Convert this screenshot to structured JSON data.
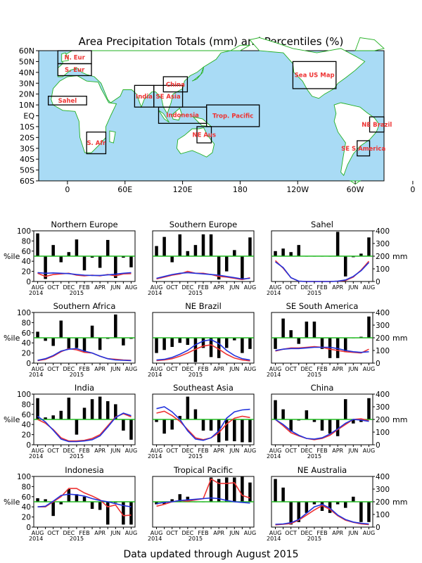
{
  "title": "Area Precipitation Totals (mm) and Percentiles (%)",
  "footer": "Data updated through August 2015",
  "map": {
    "lat_labels": [
      "60N",
      "50N",
      "40N",
      "30N",
      "20N",
      "10N",
      "EQ",
      "10S",
      "20S",
      "30S",
      "40S",
      "50S",
      "60S"
    ],
    "lon_labels": [
      "0",
      "60E",
      "120E",
      "180",
      "120W",
      "60W",
      "0"
    ],
    "regions": [
      {
        "label": "N. Eur",
        "lon": [
          -10,
          25
        ],
        "lat": [
          48,
          60
        ]
      },
      {
        "label": "S. Eur",
        "lon": [
          -10,
          25
        ],
        "lat": [
          37,
          48
        ]
      },
      {
        "label": "Sahel",
        "lon": [
          -20,
          20
        ],
        "lat": [
          10,
          18
        ]
      },
      {
        "label": "S. Afr",
        "lon": [
          20,
          40
        ],
        "lat": [
          -35,
          -15
        ]
      },
      {
        "label": "India",
        "lon": [
          70,
          90
        ],
        "lat": [
          8,
          28
        ]
      },
      {
        "label": "SE Asia",
        "lon": [
          90,
          120
        ],
        "lat": [
          8,
          28
        ]
      },
      {
        "label": "China",
        "lon": [
          100,
          125
        ],
        "lat": [
          22,
          36
        ]
      },
      {
        "label": "Indonesia",
        "lon": [
          95,
          145
        ],
        "lat": [
          -7,
          8
        ]
      },
      {
        "label": "Trop. Pacific",
        "lon": [
          145,
          200
        ],
        "lat": [
          -10,
          10
        ]
      },
      {
        "label": "NE Aus",
        "lon": [
          135,
          150
        ],
        "lat": [
          -25,
          -10
        ]
      },
      {
        "label": "Sea US Map",
        "lon": [
          235,
          280
        ],
        "lat": [
          25,
          50
        ]
      },
      {
        "label": "NE Brazil",
        "lon": [
          315,
          330
        ],
        "lat": [
          -15,
          -1
        ]
      },
      {
        "label": "SE S America",
        "lon": [
          302,
          315
        ],
        "lat": [
          -37,
          -23
        ]
      }
    ]
  },
  "panel_axis": {
    "left_ticks": [
      "0",
      "20",
      "40",
      "60",
      "80",
      "100"
    ],
    "right_ticks": [
      "0",
      "100",
      "200",
      "300",
      "400"
    ],
    "left_unit": "%ile",
    "right_unit": "mm",
    "months": [
      "AUG",
      "OCT",
      "DEC",
      "FEB",
      "APR",
      "JUN",
      "AUG"
    ],
    "year_start": "2014",
    "year_mid": "2015"
  },
  "colors": {
    "ocean": "#a9dbf5",
    "land": "#ffffff",
    "coast": "#22b022",
    "region_label": "#ee3333",
    "bars": "#000000",
    "percentile_line": "#22bb22",
    "observed": "#ee3333",
    "climatology": "#2233dd"
  },
  "chart_data": [
    {
      "type": "bar",
      "title": "Northern Europe",
      "x": [
        "AUG 2014",
        "SEP",
        "OCT",
        "NOV",
        "DEC",
        "JAN 2015",
        "FEB",
        "MAR",
        "APR",
        "MAY",
        "JUN",
        "JUL",
        "AUG"
      ],
      "percentiles": [
        95,
        5,
        72,
        38,
        58,
        83,
        22,
        47,
        27,
        82,
        7,
        47,
        28
      ],
      "series": [
        {
          "name": "observed",
          "values_mm": [
            65,
            40,
            55,
            60,
            65,
            50,
            45,
            50,
            45,
            55,
            45,
            60,
            62
          ]
        },
        {
          "name": "climatology",
          "values_mm": [
            70,
            65,
            68,
            65,
            62,
            55,
            50,
            48,
            48,
            52,
            58,
            65,
            70
          ]
        }
      ],
      "ylim": [
        0,
        100
      ],
      "y2lim": [
        0,
        400
      ]
    },
    {
      "type": "bar",
      "title": "Southern Europe",
      "x": [
        "AUG 2014",
        "SEP",
        "OCT",
        "NOV",
        "DEC",
        "JAN 2015",
        "FEB",
        "MAR",
        "APR",
        "MAY",
        "JUN",
        "JUL",
        "AUG"
      ],
      "percentiles": [
        70,
        88,
        38,
        93,
        60,
        72,
        93,
        93,
        4,
        20,
        62,
        4,
        87
      ],
      "series": [
        {
          "name": "observed",
          "values_mm": [
            20,
            35,
            50,
            60,
            80,
            65,
            65,
            55,
            40,
            35,
            25,
            15,
            30
          ]
        },
        {
          "name": "climatology",
          "values_mm": [
            25,
            40,
            55,
            65,
            70,
            65,
            60,
            55,
            50,
            40,
            30,
            20,
            25
          ]
        }
      ],
      "ylim": [
        0,
        100
      ],
      "y2lim": [
        0,
        400
      ]
    },
    {
      "type": "bar",
      "title": "Sahel",
      "x": [
        "AUG 2014",
        "SEP",
        "OCT",
        "NOV",
        "DEC",
        "JAN 2015",
        "FEB",
        "MAR",
        "APR",
        "MAY",
        "JUN",
        "JUL",
        "AUG"
      ],
      "percentiles": [
        60,
        65,
        58,
        72,
        50,
        50,
        50,
        50,
        98,
        10,
        48,
        55,
        87
      ],
      "series": [
        {
          "name": "observed",
          "values_mm": [
            165,
            105,
            30,
            2,
            0,
            0,
            0,
            0,
            2,
            8,
            35,
            90,
            160
          ]
        },
        {
          "name": "climatology",
          "values_mm": [
            155,
            110,
            30,
            3,
            0,
            0,
            0,
            0,
            3,
            12,
            40,
            85,
            150
          ]
        }
      ],
      "ylim": [
        0,
        100
      ],
      "y2lim": [
        0,
        400
      ]
    },
    {
      "type": "bar",
      "title": "Southern Africa",
      "x": [
        "AUG 2014",
        "SEP",
        "OCT",
        "NOV",
        "DEC",
        "JAN 2015",
        "FEB",
        "MAR",
        "APR",
        "MAY",
        "JUN",
        "JUL",
        "AUG"
      ],
      "percentiles": [
        62,
        44,
        34,
        84,
        28,
        30,
        22,
        74,
        26,
        48,
        96,
        35,
        48
      ],
      "series": [
        {
          "name": "observed",
          "values_mm": [
            20,
            30,
            55,
            90,
            115,
            105,
            85,
            80,
            55,
            35,
            30,
            25,
            22
          ]
        },
        {
          "name": "climatology",
          "values_mm": [
            22,
            35,
            60,
            95,
            110,
            115,
            95,
            80,
            55,
            35,
            25,
            22,
            20
          ]
        }
      ],
      "ylim": [
        0,
        100
      ],
      "y2lim": [
        0,
        400
      ]
    },
    {
      "type": "bar",
      "title": "NE Brazil",
      "x": [
        "AUG 2014",
        "SEP",
        "OCT",
        "NOV",
        "DEC",
        "JAN 2015",
        "FEB",
        "MAR",
        "APR",
        "MAY",
        "JUN",
        "JUL",
        "AUG"
      ],
      "percentiles": [
        20,
        26,
        32,
        40,
        36,
        2,
        30,
        12,
        10,
        30,
        45,
        20,
        28
      ],
      "series": [
        {
          "name": "observed",
          "values_mm": [
            20,
            25,
            35,
            55,
            80,
            110,
            135,
            145,
            110,
            70,
            40,
            25,
            18
          ]
        },
        {
          "name": "climatology",
          "values_mm": [
            25,
            30,
            45,
            70,
            100,
            145,
            175,
            185,
            155,
            100,
            60,
            35,
            25
          ]
        }
      ],
      "ylim": [
        0,
        100
      ],
      "y2lim": [
        0,
        400
      ]
    },
    {
      "type": "bar",
      "title": "SE South America",
      "x": [
        "AUG 2014",
        "SEP",
        "OCT",
        "NOV",
        "DEC",
        "JAN 2015",
        "FEB",
        "MAR",
        "APR",
        "MAY",
        "JUN",
        "JUL",
        "AUG"
      ],
      "percentiles": [
        28,
        88,
        65,
        38,
        82,
        82,
        28,
        10,
        10,
        22,
        50,
        52,
        92
      ],
      "series": [
        {
          "name": "observed",
          "values_mm": [
            95,
            110,
            120,
            120,
            125,
            130,
            125,
            110,
            100,
            90,
            85,
            80,
            110
          ]
        },
        {
          "name": "climatology",
          "values_mm": [
            100,
            110,
            115,
            115,
            120,
            125,
            125,
            125,
            115,
            100,
            90,
            85,
            90
          ]
        }
      ],
      "ylim": [
        0,
        100
      ],
      "y2lim": [
        0,
        400
      ]
    },
    {
      "type": "bar",
      "title": "India",
      "x": [
        "AUG 2014",
        "SEP",
        "OCT",
        "NOV",
        "DEC",
        "JAN 2015",
        "FEB",
        "MAR",
        "APR",
        "MAY",
        "JUN",
        "JUL",
        "AUG"
      ],
      "percentiles": [
        92,
        54,
        58,
        67,
        93,
        20,
        73,
        90,
        95,
        86,
        80,
        28,
        10
      ],
      "series": [
        {
          "name": "observed",
          "values_mm": [
            200,
            170,
            120,
            55,
            30,
            30,
            35,
            50,
            80,
            150,
            220,
            245,
            220
          ]
        },
        {
          "name": "climatology",
          "values_mm": [
            225,
            180,
            115,
            45,
            25,
            25,
            30,
            40,
            70,
            140,
            215,
            250,
            230
          ]
        }
      ],
      "ylim": [
        0,
        100
      ],
      "y2lim": [
        0,
        400
      ]
    },
    {
      "type": "bar",
      "title": "Southeast Asia",
      "x": [
        "AUG 2014",
        "SEP",
        "OCT",
        "NOV",
        "DEC",
        "JAN 2015",
        "FEB",
        "MAR",
        "APR",
        "MAY",
        "JUN",
        "JUL",
        "AUG"
      ],
      "percentiles": [
        45,
        22,
        30,
        57,
        95,
        70,
        28,
        28,
        5,
        8,
        7,
        5,
        5
      ],
      "series": [
        {
          "name": "observed",
          "values_mm": [
            250,
            265,
            230,
            185,
            120,
            55,
            40,
            55,
            95,
            165,
            210,
            225,
            215
          ]
        },
        {
          "name": "climatology",
          "values_mm": [
            285,
            300,
            260,
            200,
            110,
            45,
            35,
            55,
            110,
            210,
            260,
            275,
            280
          ]
        }
      ],
      "ylim": [
        0,
        100
      ],
      "y2lim": [
        0,
        400
      ]
    },
    {
      "type": "bar",
      "title": "China",
      "x": [
        "AUG 2014",
        "SEP",
        "OCT",
        "NOV",
        "DEC",
        "JAN 2015",
        "FEB",
        "MAR",
        "APR",
        "MAY",
        "JUN",
        "JUL",
        "AUG"
      ],
      "percentiles": [
        88,
        70,
        26,
        48,
        68,
        45,
        28,
        22,
        17,
        90,
        42,
        45,
        92
      ],
      "series": [
        {
          "name": "observed",
          "values_mm": [
            200,
            150,
            95,
            70,
            50,
            40,
            50,
            75,
            120,
            160,
            200,
            205,
            190
          ]
        },
        {
          "name": "climatology",
          "values_mm": [
            200,
            160,
            110,
            75,
            50,
            45,
            55,
            85,
            125,
            170,
            200,
            195,
            185
          ]
        }
      ],
      "ylim": [
        0,
        100
      ],
      "y2lim": [
        0,
        400
      ]
    },
    {
      "type": "bar",
      "title": "Indonesia",
      "x": [
        "AUG 2014",
        "SEP",
        "OCT",
        "NOV",
        "DEC",
        "JAN 2015",
        "FEB",
        "MAR",
        "APR",
        "MAY",
        "JUN",
        "JUL",
        "AUG"
      ],
      "percentiles": [
        57,
        55,
        22,
        45,
        75,
        65,
        60,
        36,
        34,
        5,
        48,
        5,
        5
      ],
      "series": [
        {
          "name": "observed",
          "values_mm": [
            160,
            160,
            200,
            240,
            305,
            305,
            270,
            245,
            215,
            160,
            175,
            90,
            95
          ]
        },
        {
          "name": "climatology",
          "values_mm": [
            160,
            165,
            205,
            250,
            260,
            255,
            245,
            225,
            210,
            200,
            185,
            170,
            160
          ]
        }
      ],
      "ylim": [
        0,
        100
      ],
      "y2lim": [
        0,
        400
      ]
    },
    {
      "type": "bar",
      "title": "Tropical Pacific",
      "x": [
        "AUG 2014",
        "SEP",
        "OCT",
        "NOV",
        "DEC",
        "JAN 2015",
        "FEB",
        "MAR",
        "APR",
        "MAY",
        "JUN",
        "JUL",
        "AUG"
      ],
      "percentiles": [
        45,
        45,
        55,
        65,
        60,
        50,
        50,
        98,
        95,
        98,
        98,
        100,
        88
      ],
      "series": [
        {
          "name": "observed",
          "values_mm": [
            165,
            180,
            200,
            210,
            205,
            215,
            225,
            380,
            345,
            345,
            350,
            250,
            230
          ]
        },
        {
          "name": "climatology",
          "values_mm": [
            185,
            195,
            200,
            210,
            215,
            220,
            225,
            230,
            225,
            210,
            200,
            195,
            190
          ]
        }
      ],
      "ylim": [
        0,
        100
      ],
      "y2lim": [
        0,
        400
      ]
    },
    {
      "type": "bar",
      "title": "NE Australia",
      "x": [
        "AUG 2014",
        "SEP",
        "OCT",
        "NOV",
        "DEC",
        "JAN 2015",
        "FEB",
        "MAR",
        "APR",
        "MAY",
        "JUN",
        "JUL",
        "AUG"
      ],
      "percentiles": [
        95,
        78,
        5,
        10,
        28,
        45,
        32,
        28,
        45,
        38,
        60,
        10,
        10
      ],
      "series": [
        {
          "name": "observed",
          "values_mm": [
            18,
            22,
            28,
            55,
            95,
            135,
            170,
            140,
            90,
            55,
            38,
            25,
            20
          ]
        },
        {
          "name": "climatology",
          "values_mm": [
            22,
            25,
            35,
            60,
            110,
            160,
            180,
            150,
            95,
            60,
            40,
            30,
            25
          ]
        }
      ],
      "ylim": [
        0,
        100
      ],
      "y2lim": [
        0,
        400
      ]
    }
  ]
}
